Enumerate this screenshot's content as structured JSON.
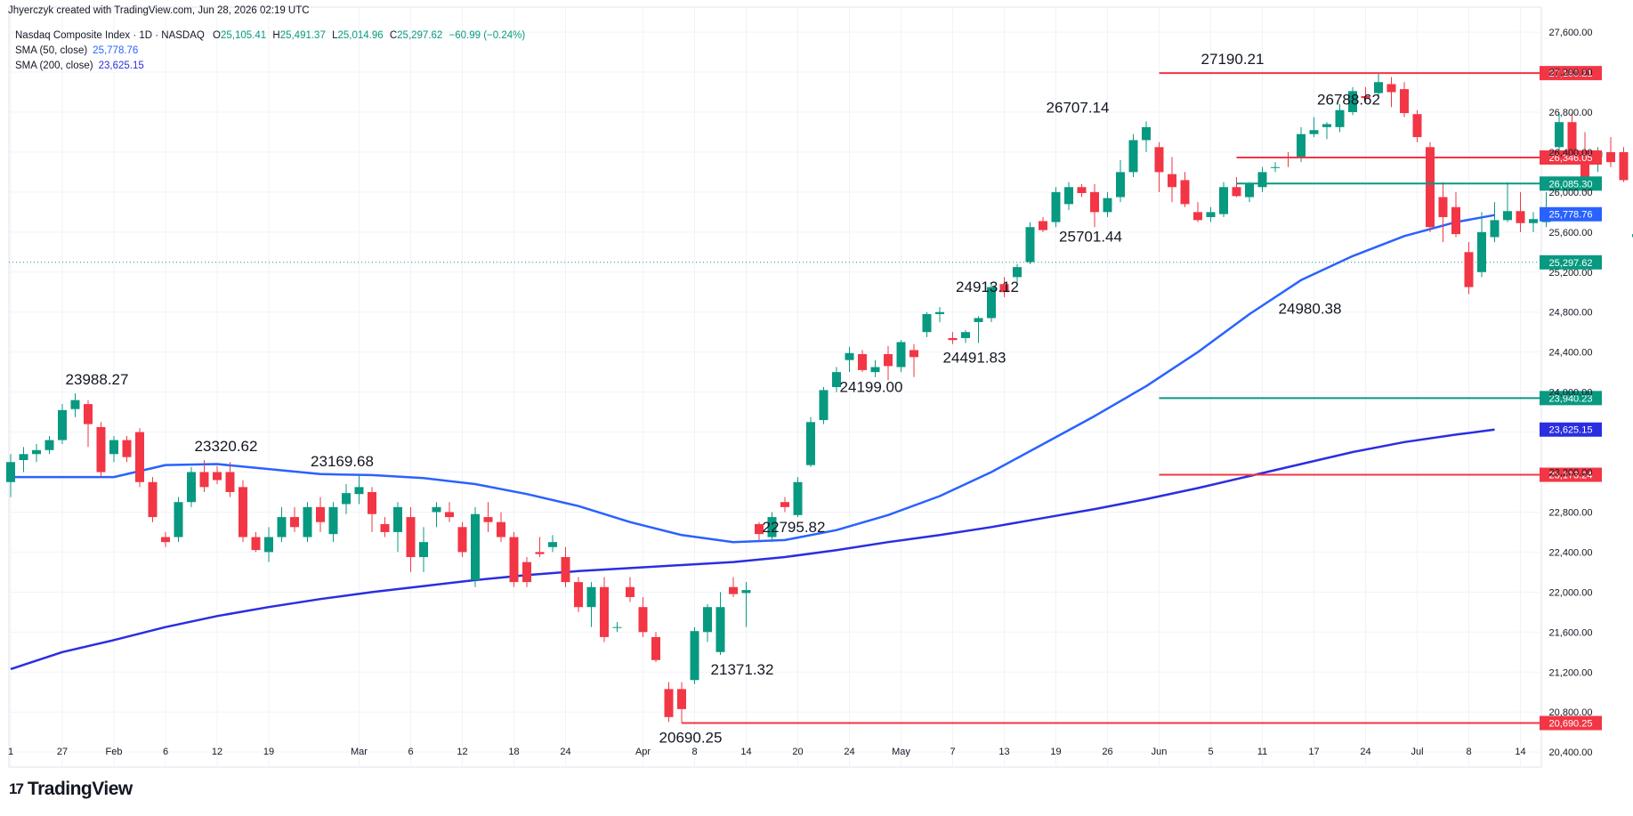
{
  "header": {
    "credit": "Jhyerczyk created with TradingView.com, Jun 28, 2026 02:19 UTC",
    "symbol": "Nasdaq Composite Index · 1D · NASDAQ",
    "ohlc": [
      {
        "label": "O",
        "value": "25,105.41"
      },
      {
        "label": "H",
        "value": "25,491.37"
      },
      {
        "label": "L",
        "value": "25,014.96"
      },
      {
        "label": "C",
        "value": "25,297.62"
      }
    ],
    "change": "−60.99 (−0.24%)"
  },
  "legend": {
    "sma50": {
      "label": "SMA (50, close)",
      "value": "25,778.76"
    },
    "sma200": {
      "label": "SMA (200, close)",
      "value": "23,625.15"
    }
  },
  "brand": {
    "name": "TradingView",
    "logo_text": "17"
  },
  "colors": {
    "up": "#089981",
    "down": "#f23645",
    "sma50": "#2962ff",
    "sma200": "#2a2ee0",
    "grid": "#f0f3fa",
    "axis_text": "#131722"
  },
  "chart_data": {
    "type": "candlestick",
    "ylim": [
      20250,
      27850
    ],
    "y_ticks": [
      20400,
      20800,
      21200,
      21600,
      22000,
      22400,
      22800,
      23200,
      23600,
      24000,
      24400,
      24800,
      25200,
      25600,
      26000,
      26400,
      26800,
      27200,
      27600
    ],
    "y_tick_labels": [
      "20,400.00",
      "20,800.00",
      "21,200.00",
      "21,600.00",
      "22,000.00",
      "22,400.00",
      "22,800.00",
      "23,200.00",
      "23,600.00",
      "24,000.00",
      "24,400.00",
      "24,800.00",
      "25,200.00",
      "25,600.00",
      "26,000.00",
      "26,400.00",
      "26,800.00",
      "27,200.00",
      "27,600.00"
    ],
    "x_ticks": [
      {
        "i": 0,
        "label": "1"
      },
      {
        "i": 4,
        "label": "27"
      },
      {
        "i": 8,
        "label": "Feb"
      },
      {
        "i": 12,
        "label": "6"
      },
      {
        "i": 16,
        "label": "12"
      },
      {
        "i": 20,
        "label": "19"
      },
      {
        "i": 27,
        "label": "Mar"
      },
      {
        "i": 31,
        "label": "6"
      },
      {
        "i": 35,
        "label": "12"
      },
      {
        "i": 39,
        "label": "18"
      },
      {
        "i": 43,
        "label": "24"
      },
      {
        "i": 49,
        "label": "Apr"
      },
      {
        "i": 53,
        "label": "8"
      },
      {
        "i": 57,
        "label": "14"
      },
      {
        "i": 61,
        "label": "20"
      },
      {
        "i": 65,
        "label": "24"
      },
      {
        "i": 69,
        "label": "May"
      },
      {
        "i": 73,
        "label": "7"
      },
      {
        "i": 77,
        "label": "13"
      },
      {
        "i": 81,
        "label": "19"
      },
      {
        "i": 85,
        "label": "26"
      },
      {
        "i": 89,
        "label": "Jun"
      },
      {
        "i": 93,
        "label": "5"
      },
      {
        "i": 97,
        "label": "11"
      },
      {
        "i": 101,
        "label": "17"
      },
      {
        "i": 105,
        "label": "24"
      },
      {
        "i": 109,
        "label": "Jul"
      },
      {
        "i": 113,
        "label": "8"
      },
      {
        "i": 117,
        "label": "14"
      }
    ],
    "candles": [
      [
        23100,
        23380,
        22950,
        23300
      ],
      [
        23320,
        23450,
        23200,
        23380
      ],
      [
        23380,
        23480,
        23300,
        23420
      ],
      [
        23420,
        23560,
        23380,
        23520
      ],
      [
        23520,
        23880,
        23480,
        23820
      ],
      [
        23830,
        23988,
        23750,
        23920
      ],
      [
        23880,
        23920,
        23450,
        23680
      ],
      [
        23650,
        23700,
        23150,
        23200
      ],
      [
        23380,
        23560,
        23300,
        23520
      ],
      [
        23520,
        23560,
        23300,
        23350
      ],
      [
        23600,
        23640,
        23050,
        23100
      ],
      [
        23100,
        23150,
        22700,
        22750
      ],
      [
        22550,
        22600,
        22450,
        22500
      ],
      [
        22550,
        22950,
        22500,
        22900
      ],
      [
        22900,
        23250,
        22850,
        23200
      ],
      [
        23200,
        23320,
        23000,
        23050
      ],
      [
        23200,
        23260,
        23080,
        23120
      ],
      [
        23200,
        23300,
        22950,
        23000
      ],
      [
        23050,
        23120,
        22500,
        22550
      ],
      [
        22550,
        22600,
        22400,
        22420
      ],
      [
        22400,
        22650,
        22300,
        22550
      ],
      [
        22550,
        22850,
        22500,
        22750
      ],
      [
        22750,
        22850,
        22600,
        22650
      ],
      [
        22550,
        22900,
        22500,
        22850
      ],
      [
        22850,
        22950,
        22600,
        22700
      ],
      [
        22580,
        22900,
        22500,
        22850
      ],
      [
        22880,
        23080,
        22780,
        22990
      ],
      [
        22980,
        23170,
        22880,
        23050
      ],
      [
        23000,
        23050,
        22600,
        22780
      ],
      [
        22680,
        22750,
        22550,
        22600
      ],
      [
        22600,
        22900,
        22400,
        22850
      ],
      [
        22750,
        22850,
        22200,
        22350
      ],
      [
        22350,
        22650,
        22200,
        22500
      ],
      [
        22800,
        22900,
        22650,
        22850
      ],
      [
        22800,
        22900,
        22700,
        22750
      ],
      [
        22650,
        22700,
        22350,
        22400
      ],
      [
        22120,
        22850,
        22050,
        22780
      ],
      [
        22750,
        22900,
        22600,
        22700
      ],
      [
        22700,
        22800,
        22500,
        22550
      ],
      [
        22550,
        22600,
        22050,
        22100
      ],
      [
        22300,
        22350,
        22050,
        22100
      ],
      [
        22400,
        22550,
        22350,
        22380
      ],
      [
        22450,
        22570,
        22400,
        22500
      ],
      [
        22350,
        22450,
        22050,
        22100
      ],
      [
        22100,
        22150,
        21800,
        21850
      ],
      [
        21850,
        22100,
        21650,
        22050
      ],
      [
        22050,
        22150,
        21500,
        21550
      ],
      [
        21650,
        21700,
        21600,
        21650
      ],
      [
        22050,
        22150,
        21900,
        21950
      ],
      [
        21850,
        21950,
        21550,
        21600
      ],
      [
        21550,
        21600,
        21300,
        21320
      ],
      [
        21030,
        21100,
        20700,
        20750
      ],
      [
        21030,
        21100,
        20690,
        20830
      ],
      [
        21120,
        21650,
        21080,
        21610
      ],
      [
        21600,
        21880,
        21500,
        21850
      ],
      [
        21400,
        22000,
        21370,
        21850
      ],
      [
        22050,
        22150,
        21950,
        21980
      ],
      [
        21990,
        22100,
        21650,
        22020
      ],
      [
        22680,
        22700,
        22520,
        22580
      ],
      [
        22550,
        22800,
        22500,
        22750
      ],
      [
        22900,
        22950,
        22800,
        22850
      ],
      [
        22770,
        23150,
        22750,
        23100
      ],
      [
        23270,
        23750,
        23250,
        23700
      ],
      [
        23720,
        24050,
        23680,
        24020
      ],
      [
        24050,
        24250,
        24000,
        24200
      ],
      [
        24320,
        24450,
        24200,
        24390
      ],
      [
        24380,
        24420,
        24199,
        24220
      ],
      [
        24200,
        24320,
        24150,
        24250
      ],
      [
        24380,
        24460,
        24120,
        24260
      ],
      [
        24250,
        24520,
        24200,
        24500
      ],
      [
        24420,
        24480,
        24150,
        24350
      ],
      [
        24600,
        24800,
        24550,
        24780
      ],
      [
        24780,
        24850,
        24700,
        24800
      ],
      [
        24540,
        24600,
        24480,
        24520
      ],
      [
        24540,
        24620,
        24491,
        24600
      ],
      [
        24700,
        24760,
        24491,
        24740
      ],
      [
        24740,
        25100,
        24700,
        25050
      ],
      [
        25080,
        25150,
        24950,
        25000
      ],
      [
        25150,
        25280,
        25100,
        25250
      ],
      [
        25300,
        25700,
        25280,
        25650
      ],
      [
        25710,
        25750,
        25600,
        25620
      ],
      [
        25700,
        26050,
        25650,
        26000
      ],
      [
        25880,
        26100,
        25820,
        26050
      ],
      [
        26050,
        26080,
        25950,
        25990
      ],
      [
        26000,
        26080,
        25650,
        25800
      ],
      [
        25800,
        26000,
        25750,
        25940
      ],
      [
        25950,
        26320,
        25900,
        26200
      ],
      [
        26200,
        26580,
        26150,
        26520
      ],
      [
        26520,
        26707,
        26400,
        26650
      ],
      [
        26450,
        26500,
        26000,
        26200
      ],
      [
        26180,
        26350,
        25900,
        26050
      ],
      [
        26120,
        26200,
        25850,
        25880
      ],
      [
        25800,
        25900,
        25700,
        25720
      ],
      [
        25750,
        25850,
        25700,
        25800
      ],
      [
        25780,
        26100,
        25750,
        26050
      ],
      [
        26050,
        26150,
        25950,
        25960
      ],
      [
        25950,
        26100,
        25900,
        26080
      ],
      [
        26050,
        26250,
        26000,
        26200
      ],
      [
        26250,
        26300,
        26200,
        26250
      ],
      [
        26350,
        26400,
        26250,
        26340
      ],
      [
        26350,
        26650,
        26300,
        26580
      ],
      [
        26580,
        26750,
        26550,
        26620
      ],
      [
        26650,
        26700,
        26530,
        26680
      ],
      [
        26650,
        26880,
        26600,
        26820
      ],
      [
        26800,
        27050,
        26770,
        27010
      ],
      [
        26960,
        27050,
        26900,
        26940
      ],
      [
        26990,
        27190,
        26950,
        27100
      ],
      [
        27080,
        27150,
        26850,
        27000
      ],
      [
        27030,
        27100,
        26750,
        26790
      ],
      [
        26780,
        26820,
        26500,
        26550
      ],
      [
        26450,
        26500,
        25600,
        25650
      ],
      [
        25950,
        26100,
        25500,
        25750
      ],
      [
        25850,
        26000,
        25550,
        25580
      ],
      [
        25400,
        25500,
        24980,
        25050
      ],
      [
        25200,
        25800,
        25150,
        25600
      ],
      [
        25550,
        25900,
        25500,
        25720
      ],
      [
        25720,
        26100,
        25700,
        25810
      ],
      [
        25810,
        26000,
        25600,
        25690
      ],
      [
        25690,
        25800,
        25600,
        25730
      ],
      [
        25700,
        26000,
        25650,
        25800
      ],
      [
        26450,
        26800,
        26400,
        26700
      ],
      [
        26700,
        26788,
        26350,
        26400
      ],
      [
        26400,
        26600,
        26000,
        26050
      ],
      [
        26350,
        26450,
        26200,
        26400
      ],
      [
        26400,
        26550,
        26250,
        26300
      ],
      [
        26400,
        26450,
        26100,
        26120
      ],
      [
        25550,
        25800,
        25500,
        25580
      ],
      [
        25600,
        25750,
        25400,
        25450
      ],
      [
        25500,
        25700,
        25350,
        25420
      ],
      [
        25650,
        25700,
        25150,
        25300
      ],
      [
        25105,
        25491,
        25015,
        25298
      ]
    ],
    "sma50": [
      [
        0,
        23150
      ],
      [
        8,
        23150
      ],
      [
        12,
        23270
      ],
      [
        16,
        23280
      ],
      [
        20,
        23230
      ],
      [
        24,
        23180
      ],
      [
        28,
        23170
      ],
      [
        32,
        23140
      ],
      [
        36,
        23080
      ],
      [
        40,
        22980
      ],
      [
        44,
        22860
      ],
      [
        48,
        22700
      ],
      [
        52,
        22570
      ],
      [
        56,
        22500
      ],
      [
        60,
        22520
      ],
      [
        64,
        22620
      ],
      [
        68,
        22770
      ],
      [
        72,
        22960
      ],
      [
        76,
        23200
      ],
      [
        80,
        23480
      ],
      [
        84,
        23760
      ],
      [
        88,
        24060
      ],
      [
        92,
        24400
      ],
      [
        96,
        24780
      ],
      [
        100,
        25120
      ],
      [
        104,
        25360
      ],
      [
        108,
        25560
      ],
      [
        112,
        25700
      ],
      [
        115,
        25770
      ]
    ],
    "sma200": [
      [
        0,
        21230
      ],
      [
        4,
        21400
      ],
      [
        8,
        21520
      ],
      [
        12,
        21650
      ],
      [
        16,
        21760
      ],
      [
        20,
        21850
      ],
      [
        24,
        21930
      ],
      [
        28,
        22000
      ],
      [
        32,
        22060
      ],
      [
        36,
        22120
      ],
      [
        40,
        22170
      ],
      [
        44,
        22210
      ],
      [
        48,
        22240
      ],
      [
        52,
        22270
      ],
      [
        56,
        22300
      ],
      [
        60,
        22350
      ],
      [
        64,
        22420
      ],
      [
        68,
        22500
      ],
      [
        72,
        22570
      ],
      [
        76,
        22650
      ],
      [
        80,
        22740
      ],
      [
        84,
        22830
      ],
      [
        88,
        22930
      ],
      [
        92,
        23040
      ],
      [
        96,
        23160
      ],
      [
        100,
        23280
      ],
      [
        104,
        23400
      ],
      [
        108,
        23500
      ],
      [
        112,
        23575
      ],
      [
        115,
        23625
      ]
    ],
    "last_close": 25297.62,
    "hlines": [
      {
        "price": 27190.21,
        "label": "27,190.21",
        "color": "#f23645",
        "from": 89
      },
      {
        "price": 26346.05,
        "label": "26,346.05",
        "color": "#f23645",
        "from": 95
      },
      {
        "price": 26085.3,
        "label": "26,085.30",
        "color": "#089981",
        "from": 95
      },
      {
        "price": 23940.23,
        "label": "23,940.23",
        "color": "#089981",
        "from": 89
      },
      {
        "price": 23173.24,
        "label": "23,173.24",
        "color": "#f23645",
        "from": 89
      },
      {
        "price": 20690.25,
        "label": "20,690.25",
        "color": "#f23645",
        "from": 52
      }
    ],
    "price_tags": [
      {
        "price": 25778.76,
        "label": "25,778.76",
        "color": "#2962ff"
      },
      {
        "price": 25297.62,
        "label": "25,297.62",
        "color": "#089981"
      },
      {
        "price": 23625.15,
        "label": "23,625.15",
        "color": "#2a2ee0"
      }
    ],
    "annotations": [
      {
        "i": 6,
        "price": 23988.27,
        "text": "23988.27"
      },
      {
        "i": 16,
        "price": 23320.62,
        "text": "23320.62"
      },
      {
        "i": 25,
        "price": 23169.68,
        "text": "23169.68"
      },
      {
        "i": 52,
        "price": 20690.25,
        "text": "20690.25"
      },
      {
        "i": 56,
        "price": 21371.32,
        "text": "21371.32"
      },
      {
        "i": 60,
        "price": 22795.82,
        "text": "22795.82"
      },
      {
        "i": 66,
        "price": 24199.0,
        "text": "24199.00"
      },
      {
        "i": 74,
        "price": 24491.83,
        "text": "24491.83"
      },
      {
        "i": 75,
        "price": 24913.12,
        "text": "24913.12"
      },
      {
        "i": 83,
        "price": 25701.44,
        "text": "25701.44"
      },
      {
        "i": 82,
        "price": 26707.14,
        "text": "26707.14"
      },
      {
        "i": 94,
        "price": 27190.21,
        "text": "27190.21"
      },
      {
        "i": 103,
        "price": 26788.62,
        "text": "26788.62"
      },
      {
        "i": 100,
        "price": 24980.38,
        "text": "24980.38"
      }
    ]
  }
}
